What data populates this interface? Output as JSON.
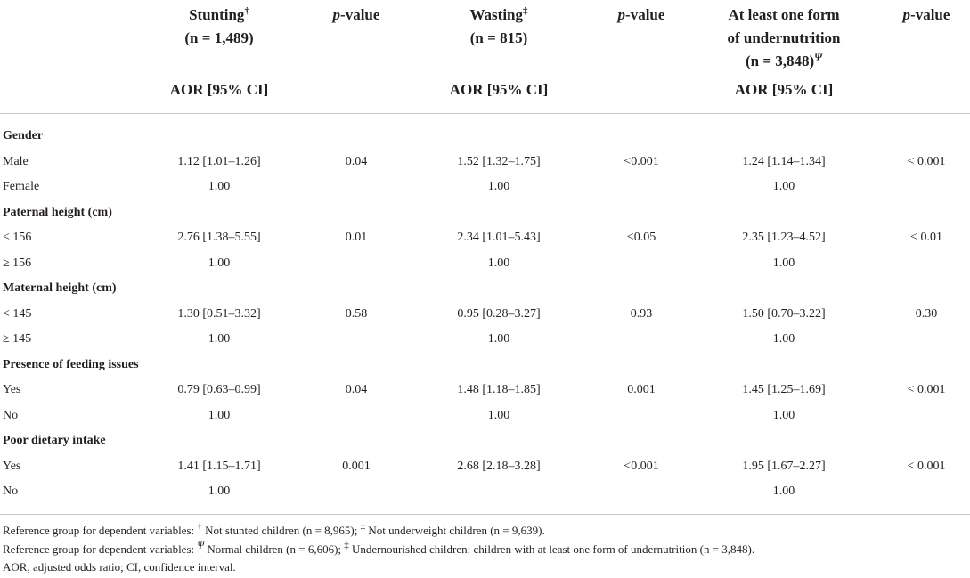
{
  "headers": {
    "stunting": {
      "name": "Stunting",
      "mark": "†",
      "n": "(n = 1,489)",
      "metric": "AOR [95% CI]"
    },
    "p1": {
      "p": "p",
      "rest": "-value"
    },
    "wasting": {
      "name": "Wasting",
      "mark": "‡",
      "n": "(n = 815)",
      "metric": "AOR [95% CI]"
    },
    "p2": {
      "p": "p",
      "rest": "-value"
    },
    "undernutrition": {
      "line1": "At least one form",
      "line2": "of undernutrition",
      "n": "(n = 3,848)",
      "mark": "Ψ",
      "metric": "AOR [95% CI]"
    },
    "p3": {
      "p": "p",
      "rest": "-value"
    }
  },
  "rows": [
    {
      "label": "Gender",
      "section": true
    },
    {
      "label": "Male",
      "c1": "1.12 [1.01–1.26]",
      "p1": "0.04",
      "c2": "1.52 [1.32–1.75]",
      "p2": "<0.001",
      "c3": "1.24 [1.14–1.34]",
      "p3": "< 0.001"
    },
    {
      "label": "Female",
      "c1": "1.00",
      "p1": "",
      "c2": "1.00",
      "p2": "",
      "c3": "1.00",
      "p3": ""
    },
    {
      "label": "Paternal height (cm)",
      "section": true
    },
    {
      "label": "< 156",
      "c1": "2.76 [1.38–5.55]",
      "p1": "0.01",
      "c2": "2.34 [1.01–5.43]",
      "p2": "<0.05",
      "c3": "2.35 [1.23–4.52]",
      "p3": "< 0.01"
    },
    {
      "label": "≥ 156",
      "c1": "1.00",
      "p1": "",
      "c2": "1.00",
      "p2": "",
      "c3": "1.00",
      "p3": ""
    },
    {
      "label": "Maternal height (cm)",
      "section": true
    },
    {
      "label": "< 145",
      "c1": "1.30 [0.51–3.32]",
      "p1": "0.58",
      "c2": "0.95 [0.28–3.27]",
      "p2": "0.93",
      "c3": "1.50 [0.70–3.22]",
      "p3": "0.30"
    },
    {
      "label": "≥ 145",
      "c1": "1.00",
      "p1": "",
      "c2": "1.00",
      "p2": "",
      "c3": "1.00",
      "p3": ""
    },
    {
      "label": "Presence of feeding issues",
      "section": true
    },
    {
      "label": "Yes",
      "c1": "0.79 [0.63–0.99]",
      "p1": "0.04",
      "c2": "1.48 [1.18–1.85]",
      "p2": "0.001",
      "c3": "1.45 [1.25–1.69]",
      "p3": "< 0.001"
    },
    {
      "label": "No",
      "c1": "1.00",
      "p1": "",
      "c2": "1.00",
      "p2": "",
      "c3": "1.00",
      "p3": ""
    },
    {
      "label": "Poor dietary intake",
      "section": true
    },
    {
      "label": "Yes",
      "c1": "1.41 [1.15–1.71]",
      "p1": "0.001",
      "c2": "2.68 [2.18–3.28]",
      "p2": "<0.001",
      "c3": "1.95 [1.67–2.27]",
      "p3": "< 0.001"
    },
    {
      "label": "No",
      "c1": "1.00",
      "p1": "",
      "c2": "",
      "p2": "",
      "c3": "1.00",
      "p3": ""
    }
  ],
  "footnotes": {
    "line1": {
      "a": "Reference group for dependent variables: ",
      "m1": "†",
      "b": " Not stunted children (n = 8,965); ",
      "m2": "‡",
      "c": " Not underweight children (n = 9,639)."
    },
    "line2": {
      "a": "Reference group for dependent variables: ",
      "m1": "Ψ",
      "b": " Normal children (n = 6,606); ",
      "m2": "‡",
      "c": " Undernourished children: children with at least one form of undernutrition (n = 3,848)."
    },
    "line3": "AOR, adjusted odds ratio; CI, confidence interval."
  }
}
